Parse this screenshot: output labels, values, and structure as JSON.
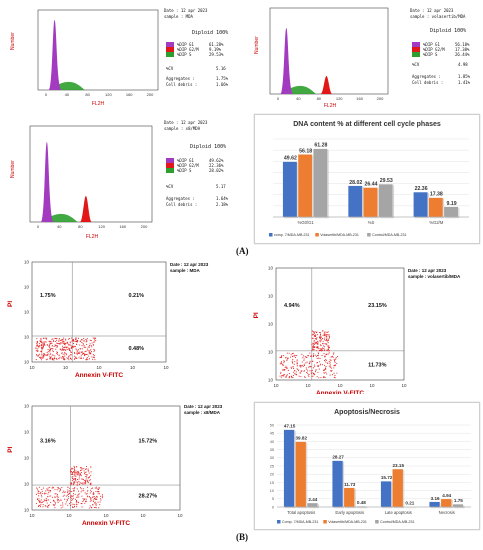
{
  "histograms": [
    {
      "id": "mda",
      "date": "Date : 12 apr 2023",
      "sample": "sample : MDA",
      "ylabel": "Number",
      "xlabel": "FL2H",
      "xticks": [
        "0",
        "40",
        "80",
        "120",
        "160",
        "200"
      ],
      "yticks": [
        "",
        "",
        "",
        ""
      ],
      "diploid": "Diploid 100%",
      "legend": [
        {
          "label": "%DIP G1",
          "value": "61.28%",
          "color": "#a23bc0"
        },
        {
          "label": "%DIP G2/M",
          "value": "9.19%",
          "color": "#e21818"
        },
        {
          "label": "%DIP S",
          "value": "29.53%",
          "color": "#2e9f2e"
        }
      ],
      "cv_label": "%CV",
      "cv_value": "5.16",
      "agg_label": "Aggregates :",
      "agg_value": "1.75%",
      "debris_label": "Cell debris :",
      "debris_value": "1.66%"
    },
    {
      "id": "volasertib",
      "date": "Date : 12 apr 2023",
      "sample": "sample : volasertib/MDA",
      "ylabel": "Number",
      "xlabel": "FL2H",
      "xticks": [
        "0",
        "40",
        "80",
        "120",
        "160",
        "200"
      ],
      "yticks": [
        "",
        "",
        "",
        ""
      ],
      "diploid": "Diploid 100%",
      "legend": [
        {
          "label": "%DIP G1",
          "value": "56.18%",
          "color": "#a23bc0"
        },
        {
          "label": "%DIP G2/M",
          "value": "17.38%",
          "color": "#e21818"
        },
        {
          "label": "%DIP S",
          "value": "26.44%",
          "color": "#2e9f2e"
        }
      ],
      "cv_label": "%CV",
      "cv_value": "4.98",
      "agg_label": "Aggregates :",
      "agg_value": "1.85%",
      "debris_label": "Cell debris :",
      "debris_value": "1.41%"
    },
    {
      "id": "x8",
      "date": "Date : 12 apr 2023",
      "sample": "sample : x8/MDA",
      "ylabel": "Number",
      "xlabel": "FL2H",
      "xticks": [
        "0",
        "40",
        "80",
        "120",
        "160",
        "200"
      ],
      "yticks": [
        "",
        "",
        "",
        ""
      ],
      "diploid": "Diploid 100%",
      "legend": [
        {
          "label": "%DIP G1",
          "value": "49.62%",
          "color": "#a23bc0"
        },
        {
          "label": "%DIP G2/M",
          "value": "22.36%",
          "color": "#e21818"
        },
        {
          "label": "%DIP S",
          "value": "28.02%",
          "color": "#2e9f2e"
        }
      ],
      "cv_label": "%CV",
      "cv_value": "5.17",
      "agg_label": "Aggregates :",
      "agg_value": "1.64%",
      "debris_label": "Cell debris :",
      "debris_value": "2.18%"
    }
  ],
  "scatters": [
    {
      "id": "mda",
      "date": "Date : 12 apr 2023",
      "sample": "sample : MDA",
      "ylabel": "PI",
      "xlabel": "Annexin V-FITC",
      "q": {
        "ul": "1.75%",
        "ur": "0.21%",
        "lr": "0.48%"
      },
      "ticks": [
        "10",
        "10",
        "10",
        "10",
        "10"
      ]
    },
    {
      "id": "volasertib",
      "date": "Date : 12 apr 2023",
      "sample": "sample : volasertib/MDA",
      "ylabel": "PI",
      "xlabel": "Annexin V-FITC",
      "q": {
        "ul": "4.94%",
        "ur": "23.15%",
        "lr": "11.73%"
      },
      "ticks": [
        "10",
        "10",
        "10",
        "10",
        "10"
      ]
    },
    {
      "id": "x8",
      "date": "Date : 12 apr 2023",
      "sample": "sample : x8/MDA",
      "ylabel": "PI",
      "xlabel": "Annexin V-FITC",
      "q": {
        "ul": "3.16%",
        "ur": "15.72%",
        "lr": "28.27%"
      },
      "ticks": [
        "10",
        "10",
        "10",
        "10",
        "10"
      ]
    }
  ],
  "panel_labels": {
    "a": "(A)",
    "b": "(B)"
  },
  "chart_data": [
    {
      "type": "bar",
      "title": "DNA content % at different cell cycle phases",
      "categories": [
        "%G0/G1",
        "%S",
        "%G2/M"
      ],
      "ylim": [
        0,
        70
      ],
      "series": [
        {
          "name": "comp. 7/MDA-MB-231",
          "color": "#4472c4",
          "values": [
            49.62,
            28.02,
            22.36
          ]
        },
        {
          "name": "Volasertib/MDA-MB-231",
          "color": "#ed7d31",
          "values": [
            56.18,
            26.44,
            17.38
          ]
        },
        {
          "name": "Control/MDA-MB-231",
          "color": "#a5a5a5",
          "values": [
            61.28,
            29.53,
            9.19
          ]
        }
      ]
    },
    {
      "type": "bar",
      "title": "Apoptosis/Necrosis",
      "categories": [
        "Total apoptosis",
        "Early apoptosis",
        "Late apoptosis",
        "Necrosis"
      ],
      "ylim": [
        0,
        50
      ],
      "yticks": [
        "0",
        "5",
        "10",
        "15",
        "20",
        "25",
        "30",
        "35",
        "40",
        "45",
        "50"
      ],
      "series": [
        {
          "name": "Comp. 7/MDA-MB-231",
          "color": "#4472c4",
          "values": [
            47.15,
            28.27,
            15.72,
            3.16
          ]
        },
        {
          "name": "Volasertib/MDA-MB-231",
          "color": "#ed7d31",
          "values": [
            39.82,
            11.73,
            23.15,
            4.94
          ]
        },
        {
          "name": "Control/MDA-MB-231",
          "color": "#a5a5a5",
          "values": [
            2.44,
            0.48,
            0.21,
            1.75
          ]
        }
      ]
    }
  ]
}
